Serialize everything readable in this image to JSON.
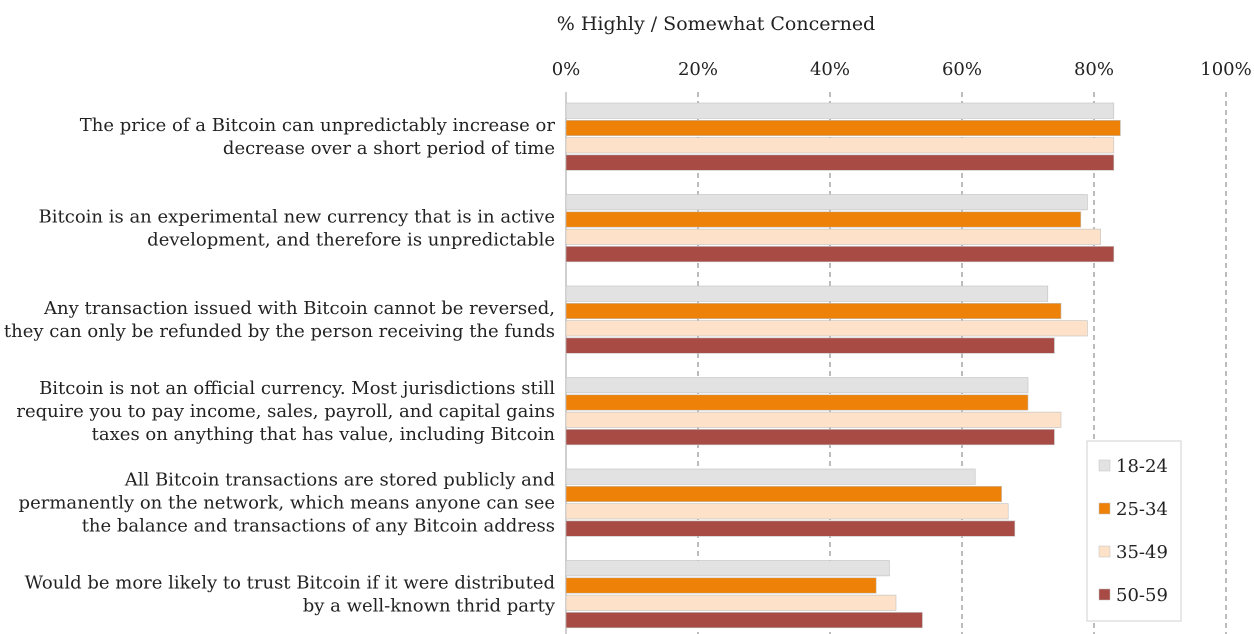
{
  "chart_data": {
    "type": "bar",
    "orientation": "horizontal",
    "title": "",
    "xlabel": "% Highly / Somewhat Concerned",
    "ylabel": "",
    "xlim": [
      0,
      100
    ],
    "x_ticks": [
      "0%",
      "20%",
      "40%",
      "60%",
      "80%",
      "100%"
    ],
    "grid": true,
    "legend_position": "bottom-right",
    "categories": [
      [
        "The price of a Bitcoin can unpredictably increase or",
        "decrease over a short period of time"
      ],
      [
        "Bitcoin is an experimental new currency that is in active",
        "development, and therefore is unpredictable"
      ],
      [
        "Any transaction issued with Bitcoin cannot be reversed,",
        "they can only be refunded by the person receiving the funds"
      ],
      [
        "Bitcoin is not an official currency. Most jurisdictions still",
        "require you to pay income, sales, payroll, and capital gains",
        "taxes on anything that has value, including Bitcoin"
      ],
      [
        "All Bitcoin transactions are stored publicly and",
        "permanently on the network, which means anyone can see",
        "the balance and transactions of any Bitcoin address"
      ],
      [
        "Would be more likely to trust Bitcoin if it were distributed",
        "by a well-known thrid party"
      ]
    ],
    "series": [
      {
        "name": "18-24",
        "color": "#e2e2e2",
        "values": [
          83,
          79,
          73,
          70,
          62,
          49
        ]
      },
      {
        "name": "25-34",
        "color": "#ee8209",
        "values": [
          84,
          78,
          75,
          70,
          66,
          47
        ]
      },
      {
        "name": "35-49",
        "color": "#fde1c9",
        "values": [
          83,
          81,
          79,
          75,
          67,
          50
        ]
      },
      {
        "name": "50-59",
        "color": "#a84b45",
        "values": [
          83,
          83,
          74,
          74,
          68,
          54
        ]
      }
    ]
  }
}
